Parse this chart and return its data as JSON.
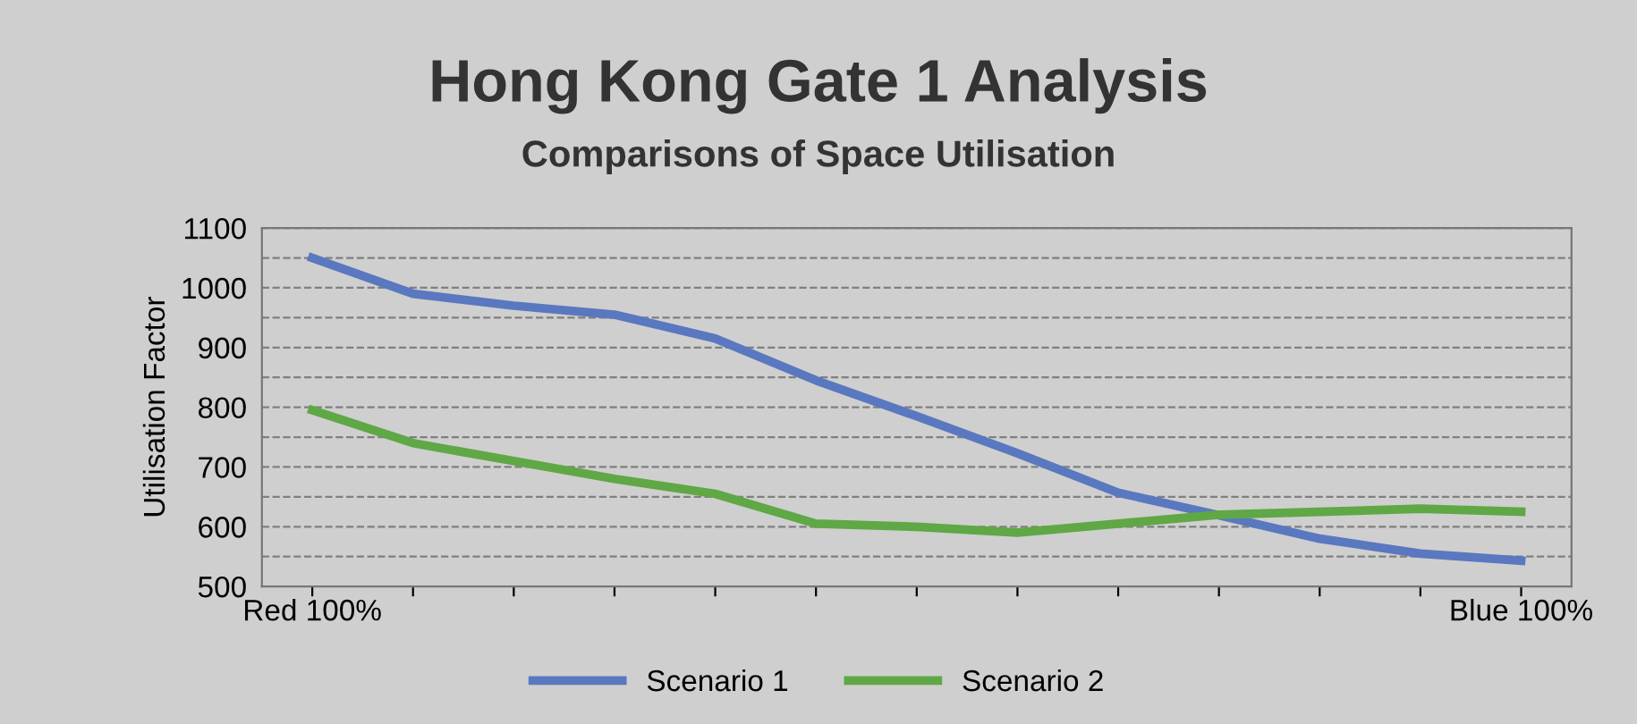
{
  "chart_data": {
    "type": "line",
    "title": "Hong Kong Gate 1 Analysis",
    "subtitle": "Comparisons of Space Utilisation",
    "ylabel": "Utilisation Factor",
    "categories": [
      "Red 100%",
      null,
      null,
      null,
      null,
      null,
      null,
      null,
      null,
      null,
      null,
      null,
      "Blue 100%"
    ],
    "series": [
      {
        "name": "Scenario 1",
        "color": "#5a78c0",
        "values": [
          1050,
          990,
          970,
          955,
          915,
          845,
          785,
          723,
          657,
          619,
          580,
          555,
          543
        ]
      },
      {
        "name": "Scenario 2",
        "color": "#5fa845",
        "values": [
          795,
          740,
          710,
          680,
          655,
          605,
          600,
          590,
          605,
          620,
          625,
          630,
          625
        ]
      }
    ],
    "ylim": [
      500,
      1100
    ],
    "yticks": [
      500,
      {
        "value": 550,
        "label": null
      },
      600,
      {
        "value": 650,
        "label": null
      },
      700,
      {
        "value": 750,
        "label": null
      },
      800,
      {
        "value": 850,
        "label": null
      },
      900,
      {
        "value": 950,
        "label": null
      },
      1000,
      {
        "value": 1050,
        "label": null
      },
      1100
    ],
    "grid": "y",
    "legend": "bottom",
    "marker": "none",
    "line_style": "solid"
  }
}
